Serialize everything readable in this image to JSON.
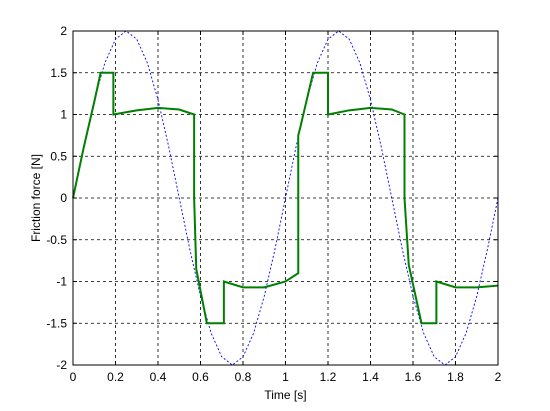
{
  "chart_data": {
    "type": "line",
    "title": "",
    "xlabel": "Time [s]",
    "ylabel": "Friction force [N]",
    "xlim": [
      0,
      2
    ],
    "ylim": [
      -2,
      2
    ],
    "xticks": [
      0,
      0.2,
      0.4,
      0.6,
      0.8,
      1,
      1.2,
      1.4,
      1.6,
      1.8,
      2
    ],
    "xtick_labels": [
      "0",
      "0.2",
      "0.4",
      "0.6",
      "0.8",
      "1",
      "1.2",
      "1.4",
      "1.6",
      "1.8",
      "2"
    ],
    "yticks": [
      -2,
      -1.5,
      -1,
      -0.5,
      0,
      0.5,
      1,
      1.5,
      2
    ],
    "ytick_labels": [
      "-2",
      "-1.5",
      "-1",
      "-0.5",
      "0",
      "0.5",
      "1",
      "1.5",
      "2"
    ],
    "grid": true,
    "legend": false,
    "series": [
      {
        "style": "dotted",
        "color": "#0000ff",
        "x": [
          0,
          0.05,
          0.1,
          0.15,
          0.2,
          0.25,
          0.3,
          0.35,
          0.4,
          0.45,
          0.5,
          0.55,
          0.6,
          0.65,
          0.7,
          0.75,
          0.8,
          0.85,
          0.9,
          0.95,
          1.0,
          1.05,
          1.1,
          1.15,
          1.2,
          1.25,
          1.3,
          1.35,
          1.4,
          1.45,
          1.5,
          1.55,
          1.6,
          1.65,
          1.7,
          1.75,
          1.8,
          1.85,
          1.9,
          1.95,
          2.0
        ],
        "y": [
          0,
          0.618,
          1.176,
          1.618,
          1.902,
          2,
          1.902,
          1.618,
          1.176,
          0.618,
          0,
          -0.618,
          -1.176,
          -1.618,
          -1.902,
          -2,
          -1.902,
          -1.618,
          -1.176,
          -0.618,
          0,
          0.618,
          1.176,
          1.618,
          1.902,
          2,
          1.902,
          1.618,
          1.176,
          0.618,
          0,
          -0.618,
          -1.176,
          -1.618,
          -1.902,
          -2,
          -1.902,
          -1.618,
          -1.176,
          -0.618,
          0
        ]
      },
      {
        "style": "solid",
        "color": "#008000",
        "x": [
          0,
          0.05,
          0.1,
          0.13,
          0.19,
          0.19,
          0.3,
          0.4,
          0.5,
          0.57,
          0.57,
          0.58,
          0.63,
          0.71,
          0.71,
          0.8,
          0.9,
          1.0,
          1.06,
          1.06,
          1.07,
          1.13,
          1.2,
          1.2,
          1.3,
          1.4,
          1.5,
          1.56,
          1.56,
          1.58,
          1.64,
          1.71,
          1.71,
          1.8,
          1.9,
          2.0
        ],
        "y": [
          0,
          0.6,
          1.15,
          1.5,
          1.5,
          1.0,
          1.05,
          1.08,
          1.06,
          1.0,
          0.0,
          -0.85,
          -1.5,
          -1.5,
          -1.0,
          -1.07,
          -1.07,
          -1.0,
          -0.9,
          0.75,
          0.85,
          1.5,
          1.5,
          1.0,
          1.05,
          1.08,
          1.06,
          1.0,
          0.0,
          -0.8,
          -1.5,
          -1.5,
          -1.0,
          -1.07,
          -1.07,
          -1.05
        ]
      }
    ]
  }
}
